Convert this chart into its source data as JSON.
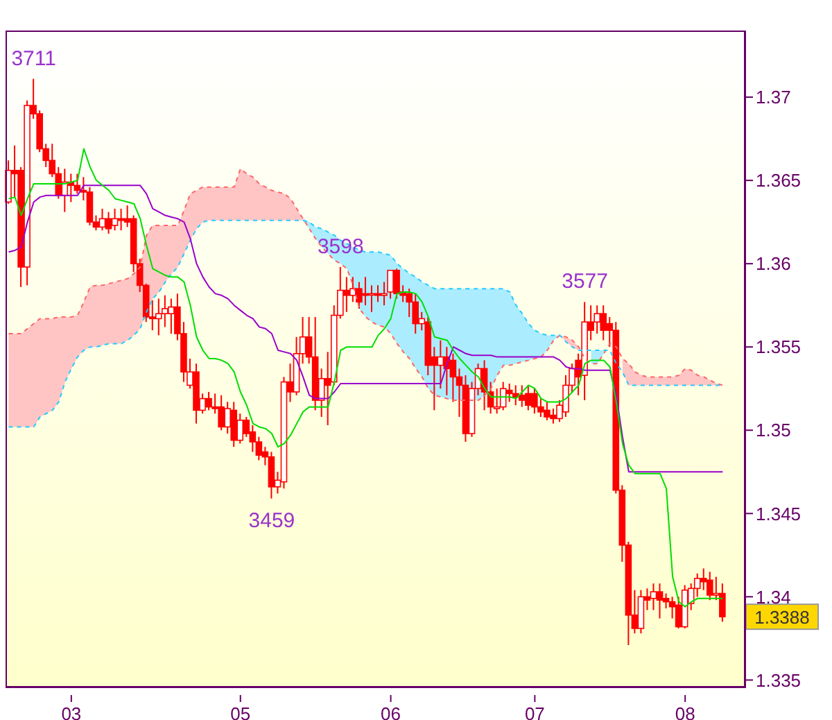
{
  "chart_data": {
    "type": "candlestick",
    "color": "#ff0000",
    "categories": [
      null,
      null,
      null,
      null,
      null,
      null,
      null,
      null,
      null,
      null,
      "03",
      null,
      null,
      null,
      null,
      null,
      null,
      null,
      null,
      null,
      null,
      null,
      null,
      null,
      null,
      null,
      null,
      null,
      null,
      null,
      null,
      null,
      null,
      null,
      null,
      null,
      null,
      "05",
      null,
      null,
      null,
      null,
      null,
      null,
      null,
      null,
      null,
      null,
      null,
      null,
      null,
      null,
      null,
      null,
      null,
      null,
      null,
      null,
      null,
      null,
      null,
      "06",
      null,
      null,
      null,
      null,
      null,
      null,
      null,
      null,
      null,
      null,
      null,
      null,
      null,
      null,
      null,
      null,
      null,
      null,
      null,
      null,
      null,
      null,
      "07",
      null,
      null,
      null,
      null,
      null,
      null,
      null,
      null,
      null,
      null,
      null,
      null,
      null,
      null,
      null,
      null,
      null,
      null,
      null,
      null,
      null,
      null,
      null,
      "08",
      null,
      null,
      null,
      null,
      null,
      null,
      null,
      null,
      null
    ],
    "ohlc": [
      [
        1.3637,
        1.3662,
        1.3636,
        1.3656
      ],
      [
        1.3656,
        1.3671,
        1.364,
        1.3654
      ],
      [
        1.3656,
        1.3658,
        1.3586,
        1.3598
      ],
      [
        1.3598,
        1.3698,
        1.3587,
        1.3695
      ],
      [
        1.3695,
        1.3711,
        1.3687,
        1.369
      ],
      [
        1.369,
        1.3692,
        1.3667,
        1.3669
      ],
      [
        1.3669,
        1.3672,
        1.3658,
        1.3662
      ],
      [
        1.3662,
        1.3672,
        1.3652,
        1.3654
      ],
      [
        1.3654,
        1.3658,
        1.3639,
        1.3641
      ],
      [
        1.3641,
        1.3657,
        1.3631,
        1.3649
      ],
      [
        1.3649,
        1.3654,
        1.3637,
        1.3647
      ],
      [
        1.3647,
        1.3654,
        1.3642,
        1.3644
      ],
      [
        1.3644,
        1.3652,
        1.3638,
        1.3643
      ],
      [
        1.3643,
        1.3646,
        1.3623,
        1.3625
      ],
      [
        1.3625,
        1.3629,
        1.362,
        1.3622
      ],
      [
        1.3622,
        1.3633,
        1.362,
        1.3627
      ],
      [
        1.3627,
        1.3631,
        1.3618,
        1.3621
      ],
      [
        1.3623,
        1.3633,
        1.362,
        1.3627
      ],
      [
        1.3627,
        1.3633,
        1.362,
        1.3626
      ],
      [
        1.3627,
        1.3635,
        1.3622,
        1.3625
      ],
      [
        1.3627,
        1.3629,
        1.3595,
        1.36
      ],
      [
        1.36,
        1.3603,
        1.3583,
        1.3587
      ],
      [
        1.3587,
        1.3588,
        1.3565,
        1.3568
      ],
      [
        1.3568,
        1.3578,
        1.356,
        1.3567
      ],
      [
        1.3567,
        1.3579,
        1.3557,
        1.357
      ],
      [
        1.357,
        1.3581,
        1.3562,
        1.3573
      ],
      [
        1.357,
        1.3579,
        1.3558,
        1.3574
      ],
      [
        1.3574,
        1.3582,
        1.3554,
        1.3558
      ],
      [
        1.3558,
        1.3565,
        1.3529,
        1.3535
      ],
      [
        1.3527,
        1.3543,
        1.3525,
        1.3535
      ],
      [
        1.3535,
        1.354,
        1.3504,
        1.3512
      ],
      [
        1.3512,
        1.3522,
        1.351,
        1.3519
      ],
      [
        1.3519,
        1.3523,
        1.3512,
        1.3514
      ],
      [
        1.3514,
        1.3522,
        1.351,
        1.3513
      ],
      [
        1.3514,
        1.3521,
        1.35,
        1.3502
      ],
      [
        1.3502,
        1.3517,
        1.3498,
        1.3513
      ],
      [
        1.3512,
        1.3517,
        1.349,
        1.3494
      ],
      [
        1.3494,
        1.351,
        1.3492,
        1.3506
      ],
      [
        1.3506,
        1.3508,
        1.3496,
        1.3498
      ],
      [
        1.3499,
        1.3503,
        1.3487,
        1.3493
      ],
      [
        1.3493,
        1.3496,
        1.3482,
        1.3485
      ],
      [
        1.3487,
        1.349,
        1.3479,
        1.3484
      ],
      [
        1.3484,
        1.3487,
        1.3459,
        1.3466
      ],
      [
        1.3466,
        1.3475,
        1.3462,
        1.347
      ],
      [
        1.3469,
        1.3532,
        1.3465,
        1.3529
      ],
      [
        1.3529,
        1.354,
        1.3517,
        1.3523
      ],
      [
        1.3523,
        1.3556,
        1.3521,
        1.3546
      ],
      [
        1.3546,
        1.3568,
        1.354,
        1.3556
      ],
      [
        1.3556,
        1.3568,
        1.354,
        1.3544
      ],
      [
        1.3544,
        1.3568,
        1.3512,
        1.3518
      ],
      [
        1.3518,
        1.3537,
        1.3508,
        1.3531
      ],
      [
        1.3531,
        1.3547,
        1.3503,
        1.3527
      ],
      [
        1.3529,
        1.3575,
        1.3527,
        1.3569
      ],
      [
        1.3569,
        1.3598,
        1.3567,
        1.3584
      ],
      [
        1.3584,
        1.3592,
        1.3571,
        1.3581
      ],
      [
        1.3581,
        1.3592,
        1.3577,
        1.3585
      ],
      [
        1.3585,
        1.3589,
        1.3573,
        1.3577
      ],
      [
        1.3582,
        1.3592,
        1.3575,
        1.3581
      ],
      [
        1.3582,
        1.3587,
        1.3571,
        1.3582
      ],
      [
        1.3582,
        1.3587,
        1.3577,
        1.3581
      ],
      [
        1.3581,
        1.3589,
        1.3575,
        1.3582
      ],
      [
        1.3583,
        1.3596,
        1.3579,
        1.3596
      ],
      [
        1.3596,
        1.3597,
        1.3579,
        1.3582
      ],
      [
        1.3583,
        1.3587,
        1.3577,
        1.3581
      ],
      [
        1.3582,
        1.3585,
        1.3568,
        1.3577
      ],
      [
        1.3577,
        1.3582,
        1.3558,
        1.3564
      ],
      [
        1.3564,
        1.3571,
        1.356,
        1.3567
      ],
      [
        1.3565,
        1.3568,
        1.3533,
        1.3539
      ],
      [
        1.3544,
        1.355,
        1.3512,
        1.3539
      ],
      [
        1.3539,
        1.3554,
        1.3525,
        1.3544
      ],
      [
        1.3544,
        1.355,
        1.3521,
        1.3537
      ],
      [
        1.3542,
        1.3546,
        1.3517,
        1.3532
      ],
      [
        1.3532,
        1.3537,
        1.3508,
        1.3527
      ],
      [
        1.3527,
        1.3533,
        1.3493,
        1.3498
      ],
      [
        1.3498,
        1.3529,
        1.3496,
        1.3525
      ],
      [
        1.3525,
        1.354,
        1.3521,
        1.3537
      ],
      [
        1.3537,
        1.3542,
        1.3512,
        1.3523
      ],
      [
        1.3523,
        1.3529,
        1.351,
        1.3514
      ],
      [
        1.3513,
        1.3525,
        1.351,
        1.3514
      ],
      [
        1.3514,
        1.3529,
        1.3512,
        1.3525
      ],
      [
        1.3524,
        1.3528,
        1.3517,
        1.3522
      ],
      [
        1.3522,
        1.3527,
        1.3515,
        1.352
      ],
      [
        1.3521,
        1.3527,
        1.3514,
        1.3518
      ],
      [
        1.3522,
        1.3527,
        1.3512,
        1.3515
      ],
      [
        1.3522,
        1.3525,
        1.351,
        1.3514
      ],
      [
        1.3514,
        1.3519,
        1.3508,
        1.3511
      ],
      [
        1.3512,
        1.3517,
        1.3506,
        1.3508
      ],
      [
        1.3509,
        1.3513,
        1.3504,
        1.3507
      ],
      [
        1.3507,
        1.3518,
        1.3505,
        1.3515
      ],
      [
        1.3511,
        1.3533,
        1.3508,
        1.3527
      ],
      [
        1.3527,
        1.354,
        1.3523,
        1.3537
      ],
      [
        1.3542,
        1.3546,
        1.3521,
        1.3532
      ],
      [
        1.3533,
        1.3577,
        1.3518,
        1.3565
      ],
      [
        1.3565,
        1.3575,
        1.3554,
        1.356
      ],
      [
        1.3565,
        1.3575,
        1.3558,
        1.357
      ],
      [
        1.357,
        1.3575,
        1.3554,
        1.356
      ],
      [
        1.3564,
        1.3568,
        1.355,
        1.356
      ],
      [
        1.356,
        1.3565,
        1.3462,
        1.3464
      ],
      [
        1.3464,
        1.3467,
        1.3421,
        1.3431
      ],
      [
        1.3431,
        1.3433,
        1.3371,
        1.3389
      ],
      [
        1.3389,
        1.3404,
        1.3378,
        1.3381
      ],
      [
        1.3381,
        1.3404,
        1.3378,
        1.34
      ],
      [
        1.34,
        1.3405,
        1.3392,
        1.3398
      ],
      [
        1.3399,
        1.3408,
        1.3392,
        1.3403
      ],
      [
        1.3403,
        1.3408,
        1.3387,
        1.3398
      ],
      [
        1.3399,
        1.3402,
        1.3393,
        1.3397
      ],
      [
        1.3397,
        1.34,
        1.3387,
        1.3394
      ],
      [
        1.3395,
        1.34,
        1.3381,
        1.3382
      ],
      [
        1.3382,
        1.3407,
        1.3381,
        1.3404
      ],
      [
        1.3396,
        1.3408,
        1.3392,
        1.3405
      ],
      [
        1.3405,
        1.3414,
        1.34,
        1.3411
      ],
      [
        1.3411,
        1.3417,
        1.3404,
        1.3409
      ],
      [
        1.341,
        1.3415,
        1.3398,
        1.3401
      ],
      [
        1.3401,
        1.3412,
        1.3398,
        1.3402
      ],
      [
        1.3402,
        1.3408,
        1.3385,
        1.3388
      ],
      null,
      null,
      null
    ],
    "series": [
      {
        "type": "line",
        "color": "#ff6666",
        "line_style": "dashed",
        "values": [
          1.3558,
          1.3558,
          1.3558,
          1.3561,
          1.3564,
          1.3567,
          1.3567,
          1.3567,
          1.3568,
          1.3568,
          1.3568,
          1.3569,
          1.3577,
          1.3586,
          1.3587,
          1.3587,
          1.3588,
          1.3589,
          1.359,
          1.3591,
          1.3594,
          1.3598,
          1.3617,
          1.3623,
          1.3623,
          1.3623,
          1.3623,
          1.3623,
          1.3632,
          1.3642,
          1.3644,
          1.3646,
          1.3646,
          1.3646,
          1.3646,
          1.3646,
          1.3646,
          1.3657,
          1.3654,
          1.3652,
          1.3648,
          1.3646,
          1.3644,
          1.3643,
          1.3642,
          1.3639,
          1.3633,
          1.3627,
          1.3621,
          1.3615,
          1.361,
          1.3606,
          1.3602,
          1.36,
          1.3597,
          1.3587,
          1.3573,
          1.3568,
          1.3565,
          1.3563,
          1.3562,
          1.3558,
          1.3552,
          1.3547,
          1.3543,
          1.3537,
          1.3532,
          1.3525,
          1.3521,
          1.352,
          1.3519,
          1.3518,
          1.3518,
          1.3518,
          1.3518,
          1.3518,
          1.3521,
          1.3525,
          1.3533,
          1.3539,
          1.3539,
          1.354,
          1.3541,
          1.3542,
          1.3543,
          1.3544,
          1.3548,
          1.3554,
          1.3557,
          1.3556,
          1.3554,
          1.355,
          1.3543,
          1.354,
          1.354,
          1.3546,
          1.3552,
          1.355,
          1.3543,
          1.354,
          1.3535,
          1.3533,
          1.3532,
          1.3532,
          1.3532,
          1.3532,
          1.3532,
          1.3533,
          1.3537,
          1.3536,
          1.3533,
          1.3532,
          1.353,
          1.3528,
          1.3527,
          null,
          null,
          null
        ],
        "lower": [
          1.3502,
          1.3502,
          1.3502,
          1.3502,
          1.3502,
          1.3508,
          1.351,
          1.3512,
          1.3517,
          1.3529,
          1.3537,
          1.3544,
          1.3548,
          1.355,
          1.355,
          1.3551,
          1.3552,
          1.3552,
          1.3552,
          1.3554,
          1.3557,
          1.3561,
          1.3571,
          1.3579,
          1.3583,
          1.3589,
          1.3594,
          1.3598,
          1.3606,
          1.3614,
          1.3621,
          1.3625,
          1.3626,
          1.3626,
          1.3626,
          1.3626,
          1.3626,
          1.3626,
          1.3626,
          1.3626,
          1.3626,
          1.3626,
          1.3626,
          1.3626,
          1.3626,
          1.3626,
          1.3626,
          1.3626,
          null,
          null,
          null,
          null,
          null,
          null,
          null,
          null,
          null,
          null,
          null,
          null,
          null,
          null,
          null,
          null,
          null,
          null,
          null,
          null,
          null,
          null,
          null,
          null,
          null,
          null,
          null,
          null,
          null,
          null,
          null,
          null,
          null,
          null,
          null,
          null,
          null,
          null,
          null,
          null,
          1.3557,
          1.3553,
          1.355,
          1.3548,
          null,
          null,
          null,
          null,
          null,
          null,
          1.3535,
          1.3527,
          1.3527,
          1.3527,
          1.3527,
          1.3527,
          1.3527,
          1.3527,
          1.3527,
          1.3527,
          1.3527,
          1.3527,
          1.3527,
          1.3527,
          1.3527,
          1.3527,
          1.3527,
          null,
          null,
          null
        ],
        "upper": [
          1.3558,
          1.3558,
          1.3558,
          1.3561,
          1.3564,
          1.3567,
          1.3567,
          1.3567,
          1.3568,
          1.3568,
          1.3568,
          1.3569,
          1.3577,
          1.3586,
          1.3587,
          1.3587,
          1.3588,
          1.3589,
          1.359,
          1.3591,
          1.3594,
          1.3598,
          1.3617,
          1.3623,
          1.3623,
          1.3623,
          1.3623,
          1.3623,
          1.3632,
          1.3642,
          1.3644,
          1.3646,
          1.3646,
          1.3646,
          1.3646,
          1.3646,
          1.3646,
          1.3657,
          1.3654,
          1.3652,
          1.3648,
          1.3646,
          1.3644,
          1.3643,
          1.3642,
          1.3639,
          1.3633,
          1.3627,
          null,
          null,
          null,
          null,
          null,
          null,
          null,
          null,
          null,
          null,
          null,
          null,
          null,
          null,
          null,
          null,
          null,
          null,
          null,
          null,
          null,
          null,
          null,
          null,
          null,
          null,
          null,
          null,
          null,
          null,
          null,
          null,
          null,
          null,
          null,
          null,
          null,
          null,
          null,
          null,
          1.3557,
          1.3556,
          1.3554,
          1.355,
          null,
          null,
          null,
          null,
          null,
          null,
          1.3543,
          1.354,
          1.3535,
          1.3533,
          1.3532,
          1.3532,
          1.3532,
          1.3532,
          1.3532,
          1.3533,
          1.3537,
          1.3536,
          1.3533,
          1.3532,
          1.353,
          1.3528,
          1.3527,
          null,
          null,
          null
        ]
      },
      {
        "type": "line",
        "color": "#22ccff",
        "line_style": "dashed",
        "values": [
          1.3502,
          1.3502,
          1.3502,
          1.3502,
          1.3502,
          1.3508,
          1.351,
          1.3512,
          1.3517,
          1.3529,
          1.3537,
          1.3544,
          1.3548,
          1.355,
          1.355,
          1.3551,
          1.3552,
          1.3552,
          1.3552,
          1.3554,
          1.3557,
          1.3561,
          1.3571,
          1.3579,
          1.3583,
          1.3589,
          1.3594,
          1.3598,
          1.3606,
          1.3614,
          1.3621,
          1.3625,
          1.3626,
          1.3626,
          1.3626,
          1.3626,
          1.3626,
          1.3626,
          1.3626,
          1.3626,
          1.3626,
          1.3626,
          1.3626,
          1.3626,
          1.3626,
          1.3626,
          1.3626,
          1.3626,
          1.3625,
          1.3622,
          1.3621,
          1.3619,
          1.3617,
          1.3614,
          1.3612,
          1.361,
          1.3608,
          1.3607,
          1.3607,
          1.3607,
          1.3606,
          1.3605,
          1.36,
          1.3597,
          1.3594,
          1.3592,
          1.3589,
          1.3587,
          1.3585,
          1.3585,
          1.3585,
          1.3585,
          1.3585,
          1.3585,
          1.3585,
          1.3585,
          1.3585,
          1.3585,
          1.3585,
          1.3585,
          1.3583,
          1.3575,
          1.357,
          1.3564,
          1.356,
          1.3558,
          1.3557,
          1.3557,
          1.3557,
          1.3553,
          1.355,
          1.3548,
          1.3548,
          1.3548,
          1.3548,
          1.3548,
          1.3548,
          1.354,
          1.3535,
          1.3527,
          1.3527,
          1.3527,
          1.3527,
          1.3527,
          1.3527,
          1.3527,
          1.3527,
          1.3527,
          1.3527,
          1.3527,
          1.3527,
          1.3527,
          1.3527,
          1.3527,
          1.3527,
          null,
          null,
          null
        ],
        "lower": [
          null,
          null,
          null,
          null,
          null,
          null,
          null,
          null,
          null,
          null,
          null,
          null,
          null,
          null,
          null,
          null,
          null,
          null,
          null,
          null,
          null,
          null,
          null,
          null,
          null,
          null,
          null,
          null,
          null,
          null,
          null,
          null,
          null,
          null,
          null,
          null,
          null,
          null,
          null,
          null,
          null,
          null,
          null,
          null,
          null,
          null,
          null,
          1.3626,
          1.3621,
          1.3615,
          1.361,
          1.3606,
          1.3602,
          1.36,
          1.3597,
          1.3587,
          1.3573,
          1.3568,
          1.3565,
          1.3563,
          1.3562,
          1.3558,
          1.3552,
          1.3547,
          1.3543,
          1.3537,
          1.3532,
          1.3525,
          1.3521,
          1.352,
          1.3519,
          1.3518,
          1.3518,
          1.3518,
          1.3518,
          1.3518,
          1.3521,
          1.3525,
          1.3533,
          1.3539,
          1.3539,
          1.354,
          1.3541,
          1.3542,
          1.3543,
          1.3544,
          1.3548,
          1.3554,
          1.3557,
          null,
          null,
          null,
          null,
          1.354,
          1.354,
          1.3546,
          null,
          null,
          null,
          null,
          null,
          null,
          null,
          null,
          null,
          null,
          null,
          null,
          null,
          null,
          null,
          null,
          null,
          null,
          null,
          null,
          null,
          null
        ],
        "upper": [
          null,
          null,
          null,
          null,
          null,
          null,
          null,
          null,
          null,
          null,
          null,
          null,
          null,
          null,
          null,
          null,
          null,
          null,
          null,
          null,
          null,
          null,
          null,
          null,
          null,
          null,
          null,
          null,
          null,
          null,
          null,
          null,
          null,
          null,
          null,
          null,
          null,
          null,
          null,
          null,
          null,
          null,
          null,
          null,
          null,
          null,
          null,
          1.3627,
          1.3625,
          1.3622,
          1.3621,
          1.3619,
          1.3617,
          1.3614,
          1.3612,
          1.361,
          1.3608,
          1.3607,
          1.3607,
          1.3607,
          1.3606,
          1.3605,
          1.36,
          1.3597,
          1.3594,
          1.3592,
          1.3589,
          1.3587,
          1.3585,
          1.3585,
          1.3585,
          1.3585,
          1.3585,
          1.3585,
          1.3585,
          1.3585,
          1.3585,
          1.3585,
          1.3585,
          1.3585,
          1.3583,
          1.3575,
          1.357,
          1.3564,
          1.356,
          1.3558,
          1.3557,
          1.3557,
          1.3557,
          null,
          null,
          null,
          null,
          1.3548,
          1.3548,
          1.3548,
          null,
          null,
          null,
          null,
          null,
          null,
          null,
          null,
          null,
          null,
          null,
          null,
          null,
          null,
          null,
          null,
          null,
          null,
          null,
          null,
          null,
          null
        ]
      },
      {
        "type": "line",
        "color": "#9900cc",
        "values": [
          1.3607,
          1.3608,
          1.361,
          1.3625,
          1.3637,
          1.364,
          1.3641,
          1.3641,
          1.3641,
          1.3641,
          1.3641,
          1.3641,
          1.3647,
          1.3647,
          1.3647,
          1.3647,
          1.3647,
          1.3647,
          1.3647,
          1.3647,
          1.3647,
          1.3647,
          1.3642,
          1.3633,
          1.3631,
          1.3629,
          1.3628,
          1.3627,
          1.3625,
          1.3615,
          1.36,
          1.3592,
          1.3586,
          1.3582,
          1.3581,
          1.3579,
          1.3575,
          1.3572,
          1.3569,
          1.3567,
          1.3562,
          1.3561,
          1.3558,
          1.3548,
          1.3547,
          1.3546,
          1.3542,
          1.3532,
          1.3521,
          1.3519,
          1.3519,
          1.3519,
          1.3523,
          1.3528,
          1.3528,
          1.3528,
          1.3528,
          1.3528,
          1.3528,
          1.3528,
          1.3528,
          1.3528,
          1.3528,
          1.3528,
          1.3528,
          1.3528,
          1.3528,
          1.3528,
          1.3528,
          1.3528,
          1.354,
          1.355,
          1.3548,
          1.3546,
          1.3545,
          1.3545,
          1.3545,
          1.3545,
          1.3544,
          1.3544,
          1.3544,
          1.3544,
          1.3544,
          1.3544,
          1.3544,
          1.3544,
          1.3544,
          1.3544,
          1.3542,
          1.3538,
          1.3537,
          1.3537,
          1.3536,
          1.3536,
          1.3536,
          1.3536,
          1.3536,
          1.3521,
          1.3496,
          1.3475,
          1.3475,
          1.3475,
          1.3475,
          1.3475,
          1.3475,
          1.3475,
          1.3475,
          1.3475,
          1.3475,
          1.3475,
          1.3475,
          1.3475,
          1.3475,
          1.3475,
          1.3475,
          null,
          null,
          null
        ]
      },
      {
        "type": "line",
        "color": "#00dd00",
        "values": [
          1.3639,
          1.364,
          1.3629,
          1.3639,
          1.3648,
          1.3648,
          1.3648,
          1.3648,
          1.3648,
          1.3648,
          1.3649,
          1.365,
          1.3669,
          1.3658,
          1.365,
          1.3647,
          1.3644,
          1.3639,
          1.3638,
          1.3637,
          1.3636,
          1.3627,
          1.3611,
          1.3597,
          1.3595,
          1.3593,
          1.3592,
          1.3592,
          1.3589,
          1.3575,
          1.3556,
          1.3548,
          1.3543,
          1.3543,
          1.3542,
          1.354,
          1.3535,
          1.3523,
          1.3515,
          1.3504,
          1.3502,
          1.3501,
          1.3498,
          1.349,
          1.3492,
          1.3497,
          1.3504,
          1.3511,
          1.3514,
          1.3514,
          1.3514,
          1.3514,
          1.3529,
          1.3548,
          1.355,
          1.355,
          1.355,
          1.355,
          1.355,
          1.3557,
          1.3561,
          1.3567,
          1.3582,
          1.3583,
          1.3583,
          1.3582,
          1.3577,
          1.3568,
          1.3556,
          1.3555,
          1.3554,
          1.3548,
          1.3543,
          1.3539,
          1.3535,
          1.3532,
          1.3525,
          1.352,
          1.352,
          1.352,
          1.352,
          1.3519,
          1.3523,
          1.3527,
          1.3525,
          1.3519,
          1.3517,
          1.3517,
          1.3517,
          1.3519,
          1.3523,
          1.3527,
          1.354,
          1.3542,
          1.3542,
          1.3542,
          1.3538,
          1.3517,
          1.3492,
          1.3479,
          1.3474,
          1.3474,
          1.3474,
          1.3474,
          1.3474,
          1.3465,
          1.3412,
          1.3397,
          1.3394,
          1.3397,
          1.3399,
          1.3399,
          1.3399,
          1.3399,
          1.3399,
          null,
          null,
          null
        ]
      }
    ],
    "ylim": [
      1.3346,
      1.374
    ],
    "yticks": [
      1.335,
      1.34,
      1.345,
      1.35,
      1.355,
      1.36,
      1.365,
      1.37
    ],
    "annotations": [
      {
        "text": "3711",
        "y": 1.3711
      },
      {
        "text": "3598",
        "y": 1.3598
      },
      {
        "text": "3459",
        "y": 1.3459
      },
      {
        "text": "3577",
        "y": 1.3577
      },
      "1.3388"
    ]
  }
}
